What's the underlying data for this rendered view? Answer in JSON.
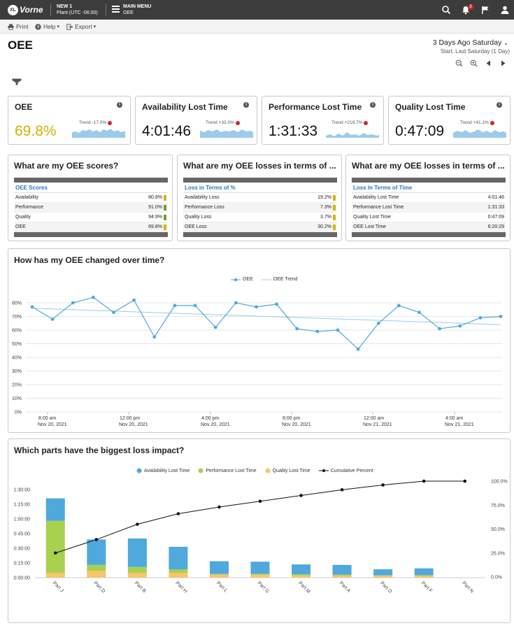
{
  "topbar": {
    "logo_badge": "XL",
    "logo_word": "Vorne",
    "station": "NEW 1",
    "plant": "Plant (UTC -06:00)",
    "menu_label": "MAIN MENU",
    "menu_sub": "OEE",
    "notification_count": "3",
    "icons": [
      "search-icon",
      "bell-icon",
      "flag-icon",
      "user-icon"
    ]
  },
  "toolbar": {
    "print": "Print",
    "help": "Help",
    "export": "Export"
  },
  "page": {
    "title": "OEE",
    "date_main": "3 Days Ago Saturday",
    "date_sub": "Start: Last Saturday (1 Day)"
  },
  "kpis": [
    {
      "title": "OEE",
      "value": "69.8%",
      "trend": "Trend -17.0%"
    },
    {
      "title": "Availability Lost Time",
      "value": "4:01:46",
      "trend": "Trend +32.0%"
    },
    {
      "title": "Performance Lost Time",
      "value": "1:31:33",
      "trend": "Trend +219.7%"
    },
    {
      "title": "Quality Lost Time",
      "value": "0:47:09",
      "trend": "Trend +41.1%"
    }
  ],
  "tables": [
    {
      "title": "What are my OEE scores?",
      "header": "OEE Scores",
      "rows": [
        {
          "label": "Availability",
          "value": "80.8%",
          "swatch": "#d6b400"
        },
        {
          "label": "Performance",
          "value": "91.0%",
          "swatch": "#6aa02c"
        },
        {
          "label": "Quality",
          "value": "94.9%",
          "swatch": "#6aa02c"
        },
        {
          "label": "OEE",
          "value": "69.8%",
          "swatch": "#d6b400"
        }
      ]
    },
    {
      "title": "What are my OEE losses in terms of ...",
      "header": "Loss in Terms of %",
      "rows": [
        {
          "label": "Availability Loss",
          "value": "19.2%",
          "swatch": "#d6b400"
        },
        {
          "label": "Performance Loss",
          "value": "7.3%",
          "swatch": "#d6b400"
        },
        {
          "label": "Quality Loss",
          "value": "3.7%",
          "swatch": "#d6b400"
        },
        {
          "label": "OEE Loss",
          "value": "30.2%",
          "swatch": "#d6b400"
        }
      ]
    },
    {
      "title": "What are my OEE losses in terms of ...",
      "header": "Loss In Terms of Time",
      "rows": [
        {
          "label": "Availability Lost Time",
          "value": "4:01:46"
        },
        {
          "label": "Performance Lost Time",
          "value": "1:31:33"
        },
        {
          "label": "Quality Lost Time",
          "value": "0:47:09"
        },
        {
          "label": "OEE Lost Time",
          "value": "6:20:29"
        }
      ]
    }
  ],
  "colors": {
    "accent_blue": "#4fa9dd",
    "perf_green": "#a8d14f",
    "quality_orange": "#f9c46b",
    "yellow": "#d4b000"
  },
  "chart_data": [
    {
      "type": "line",
      "title": "How has my OEE changed over time?",
      "series": [
        {
          "name": "OEE",
          "values": [
            77,
            68,
            80,
            84,
            73,
            82,
            55,
            78,
            78,
            62,
            80,
            77,
            79,
            61,
            59,
            60,
            46,
            65,
            78,
            73,
            61,
            63,
            69,
            70
          ]
        },
        {
          "name": "OEE Trend",
          "values": [
            76,
            64
          ]
        }
      ],
      "ylim": [
        0,
        80
      ],
      "yticks": [
        "80%",
        "70%",
        "60%",
        "50%",
        "40%",
        "30%",
        "20%",
        "10%",
        "0%"
      ],
      "xticks": [
        {
          "time": "8:00 am",
          "date": "Nov 20, 2021"
        },
        {
          "time": "12:00 pm",
          "date": "Nov 20, 2021"
        },
        {
          "time": "4:00 pm",
          "date": "Nov 20, 2021"
        },
        {
          "time": "8:00 pm",
          "date": "Nov 20, 2021"
        },
        {
          "time": "12:00 am",
          "date": "Nov 21, 2021"
        },
        {
          "time": "4:00 am",
          "date": "Nov 21, 2021"
        }
      ],
      "legend": "top-center",
      "grid": true
    },
    {
      "type": "bar",
      "title": "Which parts have the biggest loss impact?",
      "categories": [
        "Part J",
        "Part D",
        "Part B",
        "Part H",
        "Part L",
        "Part G",
        "Part M",
        "Part A",
        "Part O",
        "Part F",
        "Part N"
      ],
      "series": [
        {
          "name": "Availability Lost Time",
          "values": [
            23,
            26,
            29,
            23,
            13,
            12.5,
            10,
            10,
            6,
            7,
            0
          ]
        },
        {
          "name": "Performance Lost Time",
          "values": [
            53,
            6,
            6,
            3.5,
            0.8,
            0.8,
            1.5,
            1,
            0.5,
            0.5,
            0
          ]
        },
        {
          "name": "Quality Lost Time",
          "values": [
            5,
            7,
            5,
            5,
            3,
            3,
            2,
            2,
            2,
            2,
            0
          ]
        },
        {
          "name": "Cumulative Percent",
          "values": [
            25,
            39,
            55,
            66,
            73,
            79,
            85,
            91,
            96,
            100,
            100
          ]
        }
      ],
      "yticks_left": [
        "1:30:00",
        "1:15:00",
        "1:00:00",
        "0:45:00",
        "0:30:00",
        "0:15:00",
        "0:00:00"
      ],
      "yticks_right": [
        "100.0%",
        "75.0%",
        "50.0%",
        "25.0%",
        "0.0%"
      ],
      "ylim_minutes": [
        0,
        90
      ],
      "legend": "top-center"
    }
  ]
}
